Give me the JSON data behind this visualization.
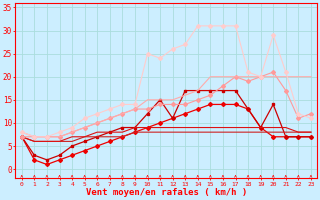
{
  "title": "",
  "xlabel": "Vent moyen/en rafales ( km/h )",
  "bg_color": "#cceeff",
  "grid_color": "#aadddd",
  "x_min": 0,
  "x_max": 23,
  "y_min": -2,
  "y_max": 36,
  "series": [
    {
      "x": [
        0,
        1,
        2,
        3,
        4,
        5,
        6,
        7,
        8,
        9,
        10,
        11,
        12,
        13,
        14,
        15,
        16,
        17,
        18,
        19,
        20,
        21,
        22,
        23
      ],
      "y": [
        7,
        2,
        1,
        2,
        3,
        4,
        5,
        6,
        7,
        8,
        9,
        10,
        11,
        12,
        13,
        14,
        14,
        14,
        13,
        9,
        7,
        7,
        7,
        7
      ],
      "color": "#ee0000",
      "marker": "D",
      "markersize": 2,
      "linewidth": 0.9
    },
    {
      "x": [
        0,
        1,
        2,
        3,
        4,
        5,
        6,
        7,
        8,
        9,
        10,
        11,
        12,
        13,
        14,
        15,
        16,
        17,
        18,
        19,
        20,
        21,
        22,
        23
      ],
      "y": [
        7,
        3,
        2,
        3,
        5,
        6,
        7,
        8,
        9,
        9,
        12,
        15,
        11,
        17,
        17,
        17,
        17,
        17,
        13,
        9,
        14,
        7,
        7,
        7
      ],
      "color": "#cc0000",
      "marker": "s",
      "markersize": 2,
      "linewidth": 0.9
    },
    {
      "x": [
        0,
        1,
        2,
        3,
        4,
        5,
        6,
        7,
        8,
        9,
        10,
        11,
        12,
        13,
        14,
        15,
        16,
        17,
        18,
        19,
        20,
        21,
        22,
        23
      ],
      "y": [
        7,
        6,
        6,
        6,
        6,
        7,
        7,
        7,
        7,
        8,
        8,
        8,
        8,
        8,
        8,
        8,
        8,
        8,
        8,
        8,
        8,
        8,
        8,
        8
      ],
      "color": "#cc2222",
      "marker": null,
      "markersize": 0,
      "linewidth": 0.8
    },
    {
      "x": [
        0,
        1,
        2,
        3,
        4,
        5,
        6,
        7,
        8,
        9,
        10,
        11,
        12,
        13,
        14,
        15,
        16,
        17,
        18,
        19,
        20,
        21,
        22,
        23
      ],
      "y": [
        7,
        6,
        6,
        6,
        7,
        7,
        8,
        8,
        8,
        9,
        9,
        9,
        9,
        9,
        9,
        9,
        9,
        9,
        9,
        9,
        9,
        9,
        8,
        8
      ],
      "color": "#dd1111",
      "marker": null,
      "markersize": 0,
      "linewidth": 0.8
    },
    {
      "x": [
        0,
        1,
        2,
        3,
        4,
        5,
        6,
        7,
        8,
        9,
        10,
        11,
        12,
        13,
        14,
        15,
        16,
        17,
        18,
        19,
        20,
        21,
        22,
        23
      ],
      "y": [
        7,
        7,
        7,
        7,
        8,
        9,
        10,
        11,
        12,
        13,
        13,
        14,
        14,
        14,
        15,
        16,
        18,
        20,
        19,
        20,
        21,
        17,
        11,
        12
      ],
      "color": "#ff9999",
      "marker": "D",
      "markersize": 2,
      "linewidth": 0.8
    },
    {
      "x": [
        0,
        1,
        2,
        3,
        4,
        5,
        6,
        7,
        8,
        9,
        10,
        11,
        12,
        13,
        14,
        15,
        16,
        17,
        18,
        19,
        20,
        21,
        22,
        23
      ],
      "y": [
        8,
        7,
        7,
        7,
        8,
        9,
        10,
        11,
        12,
        13,
        15,
        15,
        15,
        16,
        17,
        20,
        20,
        20,
        20,
        20,
        20,
        20,
        20,
        20
      ],
      "color": "#ffaaaa",
      "marker": null,
      "markersize": 0,
      "linewidth": 0.8
    },
    {
      "x": [
        0,
        1,
        2,
        3,
        4,
        5,
        6,
        7,
        8,
        9,
        10,
        11,
        12,
        13,
        14,
        15,
        16,
        17,
        18,
        19,
        20,
        21,
        22,
        23
      ],
      "y": [
        8,
        7,
        7,
        8,
        9,
        11,
        12,
        13,
        14,
        14,
        25,
        24,
        26,
        27,
        31,
        31,
        31,
        31,
        21,
        20,
        29,
        21,
        12,
        11
      ],
      "color": "#ffcccc",
      "marker": "D",
      "markersize": 2,
      "linewidth": 0.8
    }
  ],
  "spine_color": "#ff0000",
  "tick_label_color": "#ff0000",
  "xlabel_color": "#ff0000",
  "yticks": [
    0,
    5,
    10,
    15,
    20,
    25,
    30,
    35
  ],
  "xticks": [
    0,
    1,
    2,
    3,
    4,
    5,
    6,
    7,
    8,
    9,
    10,
    11,
    12,
    13,
    14,
    15,
    16,
    17,
    18,
    19,
    20,
    21,
    22,
    23
  ]
}
